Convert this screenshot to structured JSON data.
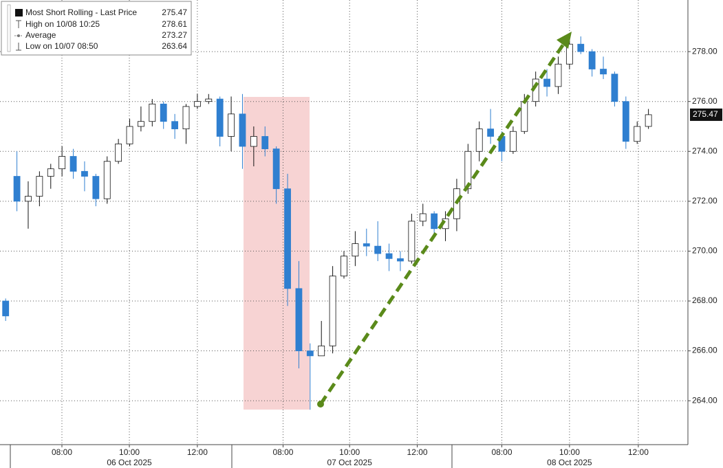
{
  "chart_data": {
    "type": "candlestick",
    "legend": [
      {
        "label": "Most Short Rolling - Last Price",
        "value": 275.47
      },
      {
        "label": "High on 10/08 10:25",
        "value": 278.61
      },
      {
        "label": "Average",
        "value": 273.27
      },
      {
        "label": "Low on 10/07 08:50",
        "value": 263.64
      }
    ],
    "open": [
      268.0,
      273.0,
      272.0,
      272.2,
      273.0,
      273.3,
      273.8,
      273.2,
      273.0,
      272.1,
      273.6,
      274.3,
      275.0,
      275.2,
      275.9,
      275.2,
      274.9,
      275.8,
      276.0,
      276.1,
      274.6,
      275.5,
      274.2,
      274.6,
      274.1,
      272.5,
      268.5,
      266.0,
      265.8,
      266.2,
      269.0,
      269.8,
      270.3,
      270.2,
      269.9,
      269.7,
      269.6,
      271.2,
      271.5,
      270.9,
      271.3,
      272.5,
      274.0,
      274.9,
      274.6,
      274.0,
      274.8,
      276.0,
      276.9,
      276.6,
      277.5,
      278.3,
      278.0,
      277.3,
      277.1,
      276.0,
      274.4,
      275.0
    ],
    "high": [
      268.1,
      274.0,
      272.8,
      273.2,
      273.5,
      274.2,
      274.1,
      273.6,
      273.1,
      273.8,
      274.5,
      275.3,
      275.8,
      276.1,
      276.0,
      275.5,
      275.9,
      276.3,
      276.3,
      276.2,
      276.2,
      276.3,
      275.0,
      275.0,
      274.2,
      273.1,
      269.6,
      266.3,
      267.2,
      269.4,
      270.0,
      270.8,
      270.9,
      271.2,
      270.3,
      270.0,
      271.5,
      271.9,
      271.6,
      271.6,
      272.9,
      274.3,
      275.2,
      275.7,
      274.8,
      275.0,
      276.3,
      277.2,
      277.3,
      277.8,
      278.5,
      278.61,
      278.1,
      277.8,
      277.2,
      276.2,
      275.2,
      275.7
    ],
    "low": [
      267.2,
      271.6,
      270.9,
      271.8,
      272.5,
      273.0,
      272.9,
      272.4,
      271.8,
      271.9,
      273.5,
      274.2,
      274.8,
      275.0,
      274.9,
      274.5,
      274.3,
      275.7,
      275.9,
      274.2,
      274.0,
      273.3,
      273.4,
      273.8,
      271.9,
      267.8,
      265.3,
      263.64,
      265.8,
      265.9,
      268.9,
      269.4,
      269.8,
      269.6,
      269.2,
      269.2,
      269.5,
      271.0,
      270.6,
      270.4,
      270.8,
      272.3,
      273.6,
      274.3,
      273.6,
      273.9,
      274.7,
      275.8,
      276.2,
      276.3,
      277.3,
      277.9,
      277.0,
      276.9,
      275.8,
      274.1,
      274.3,
      274.9
    ],
    "close": [
      267.4,
      272.0,
      272.2,
      273.0,
      273.3,
      273.8,
      273.2,
      273.0,
      272.1,
      273.6,
      274.3,
      275.0,
      275.2,
      275.9,
      275.2,
      274.9,
      275.8,
      276.0,
      276.1,
      274.6,
      275.5,
      274.2,
      274.6,
      274.1,
      272.5,
      268.5,
      266.0,
      265.8,
      266.2,
      269.0,
      269.8,
      270.3,
      270.2,
      269.9,
      269.7,
      269.6,
      271.2,
      271.5,
      270.9,
      271.3,
      272.5,
      274.0,
      274.9,
      274.6,
      274.0,
      274.8,
      276.0,
      276.9,
      276.6,
      277.5,
      278.3,
      278.0,
      277.3,
      277.1,
      276.0,
      274.4,
      275.0,
      275.47
    ],
    "up_color": "#ffffff",
    "down_color": "#2f7fd0",
    "ylim": [
      262.24,
      280.07
    ],
    "yticks": [
      {
        "value": 264,
        "label": "264.00"
      },
      {
        "value": 266,
        "label": "266.00"
      },
      {
        "value": 268,
        "label": "268.00"
      },
      {
        "value": 270,
        "label": "270.00"
      },
      {
        "value": 272,
        "label": "272.00"
      },
      {
        "value": 274,
        "label": "274.00"
      },
      {
        "value": 276,
        "label": "276.00"
      },
      {
        "value": 278,
        "label": "278.00"
      }
    ],
    "xlim": [
      0,
      61
    ],
    "xticks": [
      {
        "value": 5.49,
        "label": "08:00"
      },
      {
        "value": 11.47,
        "label": "10:00"
      },
      {
        "value": 17.5,
        "label": "12:00"
      },
      {
        "value": 25.1,
        "label": "08:00"
      },
      {
        "value": 31.0,
        "label": "10:00"
      },
      {
        "value": 37.0,
        "label": "12:00"
      },
      {
        "value": 44.5,
        "label": "08:00"
      },
      {
        "value": 50.5,
        "label": "10:00"
      },
      {
        "value": 56.6,
        "label": "12:00"
      }
    ],
    "dates": [
      "06 Oct 2025",
      "07 Oct 2025",
      "08 Oct 2025"
    ],
    "grid": true
  }
}
